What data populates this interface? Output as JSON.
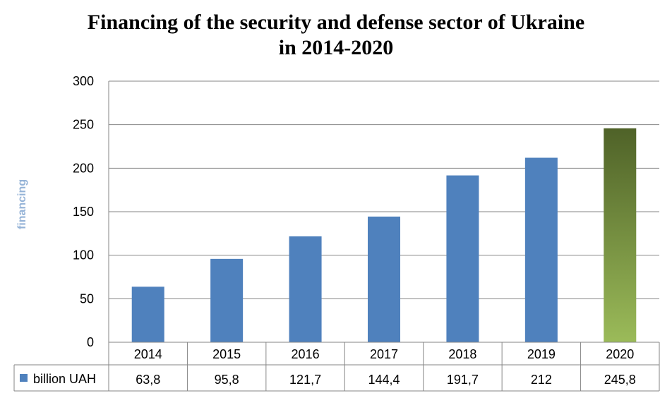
{
  "chart_data": {
    "type": "bar",
    "title_lines": [
      "Financing of the security and defense sector of Ukraine",
      "in 2014-2020"
    ],
    "ylabel": "financing",
    "ylim": [
      0,
      300
    ],
    "yticks": [
      "0",
      "50",
      "100",
      "150",
      "200",
      "250",
      "300"
    ],
    "categories": [
      "2014",
      "2015",
      "2016",
      "2017",
      "2018",
      "2019",
      "2020"
    ],
    "series": [
      {
        "name": "billion UAH",
        "values": [
          63.8,
          95.8,
          121.7,
          144.4,
          191.7,
          212,
          245.8
        ],
        "value_labels": [
          "63,8",
          "95,8",
          "121,7",
          "144,4",
          "191,7",
          "212",
          "245,8"
        ]
      }
    ],
    "grid": true,
    "legend": "data-table-left",
    "colors": {
      "bar": "#4f81bd",
      "highlight_top": "#4f6228",
      "highlight_bottom": "#9bbb59",
      "grid": "#868686"
    }
  }
}
